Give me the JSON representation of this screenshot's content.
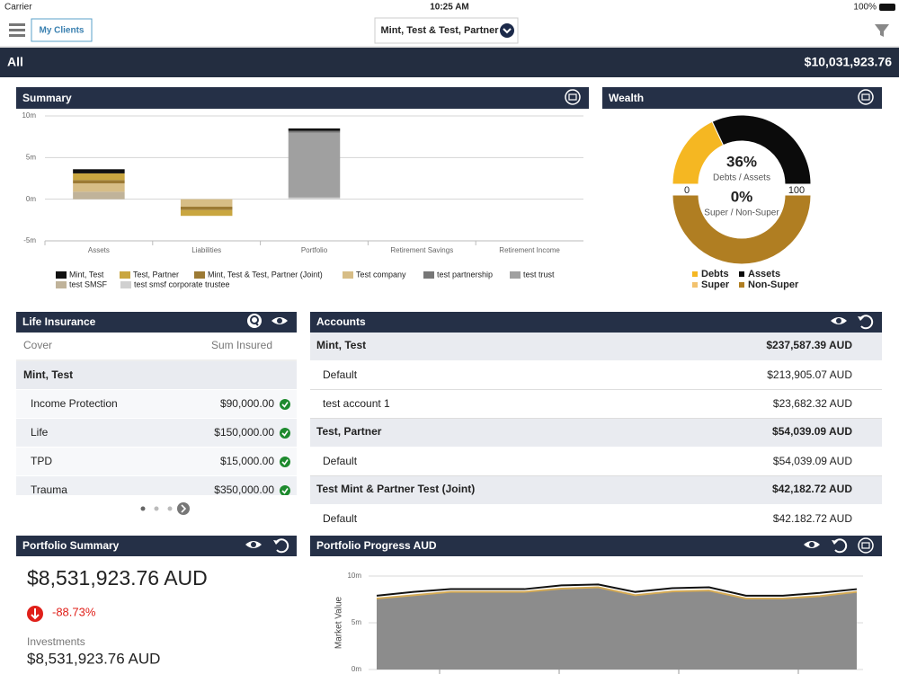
{
  "status_bar": {
    "carrier": "Carrier",
    "time": "10:25 AM",
    "battery": "100%"
  },
  "nav": {
    "clients_button": "My Clients",
    "client_selector": "Mint, Test & Test, Partner"
  },
  "total_bar": {
    "label": "All",
    "total": "$10,031,923.76"
  },
  "chart_data": [
    {
      "type": "bar",
      "stacked": true,
      "title": "Summary",
      "categories": [
        "Assets",
        "Liabilities",
        "Portfolio",
        "Retirement Savings",
        "Retirement Income"
      ],
      "ylim": [
        -5000000,
        10000000
      ],
      "yticks": [
        {
          "value": 10000000,
          "label": "10m"
        },
        {
          "value": 5000000,
          "label": "5m"
        },
        {
          "value": 0,
          "label": "0m"
        },
        {
          "value": -5000000,
          "label": "-5m"
        }
      ],
      "grid": true,
      "series": [
        {
          "name": "Mint, Test",
          "color": "#111111",
          "values": [
            500000,
            0,
            300000,
            0,
            0
          ]
        },
        {
          "name": "Test, Partner",
          "color": "#c9a640",
          "values": [
            800000,
            -700000,
            0,
            0,
            0
          ]
        },
        {
          "name": "Mint, Test & Test, Partner (Joint)",
          "color": "#9c7a34",
          "values": [
            400000,
            -400000,
            0,
            0,
            0
          ]
        },
        {
          "name": "Test company",
          "color": "#d7bd86",
          "values": [
            1000000,
            -900000,
            0,
            0,
            0
          ]
        },
        {
          "name": "test partnership",
          "color": "#777777",
          "values": [
            0,
            0,
            200000,
            0,
            0
          ]
        },
        {
          "name": "test trust",
          "color": "#a0a0a0",
          "values": [
            0,
            0,
            7800000,
            0,
            0
          ]
        },
        {
          "name": "test SMSF",
          "color": "#c0b39a",
          "values": [
            900000,
            0,
            0,
            0,
            0
          ]
        },
        {
          "name": "test smsf corporate trustee",
          "color": "#d0d0d0",
          "values": [
            0,
            0,
            200000,
            0,
            0
          ]
        }
      ]
    },
    {
      "type": "gauge",
      "title": "Wealth",
      "ticks": [
        0,
        100
      ],
      "rings": [
        {
          "label": "Debts / Assets",
          "value_label": "36%",
          "series": [
            {
              "name": "Debts",
              "color": "#f5b722",
              "value": 36
            },
            {
              "name": "Assets",
              "color": "#0b0b0b",
              "value": 64
            }
          ]
        },
        {
          "label": "Super / Non-Super",
          "value_label": "0%",
          "series": [
            {
              "name": "Super",
              "color": "#f2c26e",
              "value": 0
            },
            {
              "name": "Non-Super",
              "color": "#b07e22",
              "value": 100
            }
          ]
        }
      ]
    },
    {
      "type": "area",
      "title": "Portfolio Progress AUD",
      "y_label": "Market Value",
      "ylim": [
        0,
        10000000
      ],
      "yticks": [
        {
          "value": 10000000,
          "label": "10m"
        },
        {
          "value": 5000000,
          "label": "5m"
        },
        {
          "value": 0,
          "label": "0m"
        }
      ],
      "grid": true,
      "series": [
        {
          "color": "#111111",
          "values": [
            7900000,
            8300000,
            8600000,
            8600000,
            8600000,
            9000000,
            9100000,
            8300000,
            8700000,
            8800000,
            7900000,
            7900000,
            8200000,
            8600000
          ]
        },
        {
          "color": "#d4aa55",
          "fill": "#8c8c8c",
          "values": [
            7600000,
            7950000,
            8300000,
            8300000,
            8300000,
            8650000,
            8800000,
            7950000,
            8350000,
            8450000,
            7600000,
            7600000,
            7850000,
            8300000
          ]
        }
      ]
    }
  ],
  "life_insurance": {
    "title": "Life Insurance",
    "columns": [
      "Cover",
      "Sum Insured"
    ],
    "group": "Mint, Test",
    "rows": [
      [
        "Income Protection",
        "$90,000.00"
      ],
      [
        "Life",
        "$150,000.00"
      ],
      [
        "TPD",
        "$15,000.00"
      ],
      [
        "Trauma",
        "$350,000.00"
      ]
    ]
  },
  "accounts": {
    "title": "Accounts",
    "owners": [
      {
        "name": "Mint, Test",
        "amount": "$237,587.39 AUD",
        "accounts": [
          {
            "name": "Default",
            "amount": "$213,905.07 AUD"
          },
          {
            "name": "test account 1",
            "amount": "$23,682.32 AUD"
          }
        ]
      },
      {
        "name": "Test, Partner",
        "amount": "$54,039.09 AUD",
        "accounts": [
          {
            "name": "Default",
            "amount": "$54,039.09 AUD"
          }
        ]
      },
      {
        "name": "Test Mint & Partner Test (Joint)",
        "amount": "$42,182.72 AUD",
        "accounts": [
          {
            "name": "Default",
            "amount": "$42,182.72 AUD"
          }
        ]
      }
    ]
  },
  "portfolio_summary": {
    "title": "Portfolio Summary",
    "value": "$8,531,923.76 AUD",
    "change": "-88.73%",
    "investments_label": "Investments",
    "investments_value": "$8,531,923.76 AUD"
  }
}
